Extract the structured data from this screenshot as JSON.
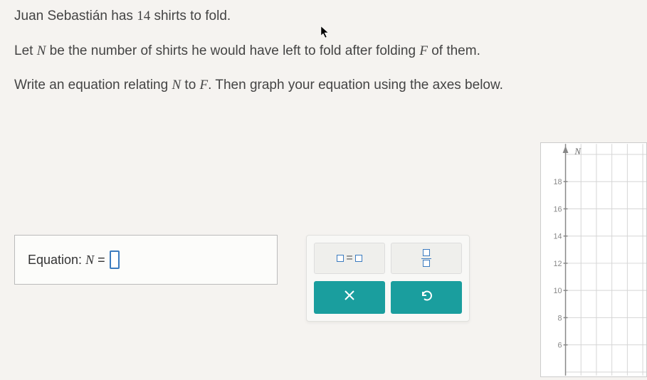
{
  "problem": {
    "line1_pre": "Juan Sebastián has ",
    "line1_num": "14",
    "line1_post": " shirts to fold.",
    "line2_pre": "Let ",
    "line2_var1": "N",
    "line2_mid": " be the number of shirts he would have left to fold after folding ",
    "line2_var2": "F",
    "line2_post": " of them.",
    "line3_pre": "Write an equation relating ",
    "line3_var1": "N",
    "line3_mid": " to ",
    "line3_var2": "F",
    "line3_post": ". Then graph your equation using the axes below."
  },
  "equation_box": {
    "label_pre": "Equation: ",
    "label_var": "N",
    "label_eq": " = "
  },
  "toolbar": {
    "eq_tool_left": "☐",
    "eq_tool_mid": "=",
    "eq_tool_right": "☐",
    "clear_label": "×",
    "reset_label": "↶"
  },
  "graph": {
    "axis_label": "N",
    "y_ticks": [
      18,
      16,
      14,
      12,
      10,
      8,
      6
    ],
    "y_max": 20,
    "y_min": 4,
    "grid_color": "#d5d5d5",
    "axis_color": "#888",
    "background_color": "#ffffff"
  }
}
